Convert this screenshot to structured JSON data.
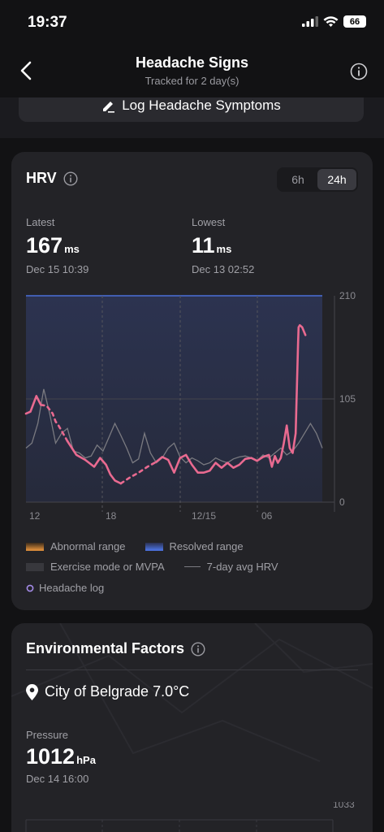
{
  "status_bar": {
    "time": "19:37",
    "battery": "66"
  },
  "header": {
    "title": "Headache Signs",
    "subtitle": "Tracked for 2 day(s)"
  },
  "log_button": {
    "label": "Log Headache Symptoms"
  },
  "hrv": {
    "title": "HRV",
    "ranges": [
      {
        "label": "6h"
      },
      {
        "label": "24h",
        "active": true
      }
    ],
    "latest": {
      "label": "Latest",
      "value": "167",
      "unit": "ms",
      "date": "Dec 15 10:39"
    },
    "lowest": {
      "label": "Lowest",
      "value": "11",
      "unit": "ms",
      "date": "Dec 13 02:52"
    },
    "legend": {
      "abnormal": "Abnormal range",
      "resolved": "Resolved range",
      "exercise": "Exercise mode or MVPA",
      "avg": "7-day avg HRV",
      "headache": "Headache log"
    },
    "colors": {
      "hrv_line": "#e96a90",
      "avg_line": "#7a7a80",
      "resolved": "#4a6fd8",
      "abnormal": "#d68a3a"
    }
  },
  "chart_data": {
    "type": "line",
    "x_ticks": [
      "12",
      "18",
      "12/15",
      "06"
    ],
    "y_ticks": [
      "210",
      "105",
      "0"
    ],
    "ylim": [
      0,
      210
    ],
    "xlim": [
      0,
      100
    ],
    "series": [
      {
        "x": [
          0,
          1.5,
          3.5,
          5,
          7,
          9,
          10,
          11,
          14,
          17,
          20,
          23,
          25,
          27,
          28.5,
          30,
          32,
          35,
          38,
          41,
          44,
          46,
          48,
          50,
          52,
          54,
          56,
          58,
          60,
          62,
          64,
          66,
          68,
          70,
          72,
          74,
          76,
          78,
          80,
          82,
          83,
          84,
          85,
          86,
          87,
          88,
          89,
          90,
          91,
          91.8,
          92,
          92.4,
          93.2,
          94.3
        ],
        "values": [
          90,
          92,
          108,
          99,
          98,
          90,
          82,
          78,
          62,
          48,
          43,
          36,
          45,
          38,
          28,
          22,
          19,
          25,
          30,
          36,
          41,
          46,
          43,
          30,
          45,
          48,
          38,
          30,
          30,
          32,
          40,
          35,
          40,
          35,
          38,
          44,
          45,
          42,
          46,
          48,
          36,
          47,
          40,
          45,
          60,
          78,
          55,
          50,
          70,
          160,
          178,
          180,
          178,
          170
        ]
      },
      {
        "x": [
          0,
          2,
          4,
          6,
          8,
          10,
          12,
          14,
          16,
          18,
          20,
          22,
          24,
          26,
          28,
          30,
          32,
          34,
          36,
          38,
          40,
          42,
          44,
          46,
          48,
          50,
          52,
          54,
          56,
          58,
          60,
          62,
          64,
          66,
          68,
          70,
          72,
          74,
          76,
          78,
          80,
          82,
          84,
          86,
          88,
          90,
          92,
          94,
          96,
          98,
          100
        ],
        "values": [
          55,
          60,
          80,
          115,
          90,
          60,
          70,
          75,
          52,
          50,
          45,
          47,
          58,
          52,
          66,
          80,
          68,
          55,
          40,
          44,
          70,
          50,
          40,
          45,
          55,
          60,
          46,
          40,
          45,
          42,
          38,
          40,
          45,
          42,
          40,
          44,
          46,
          47,
          45,
          42,
          48,
          45,
          50,
          55,
          48,
          52,
          60,
          70,
          80,
          70,
          55
        ]
      }
    ],
    "dashed_segments": [
      [
        5,
        14
      ],
      [
        32,
        44
      ]
    ]
  },
  "env": {
    "title": "Environmental Factors",
    "location": "City of Belgrade 7.0°C",
    "pressure": {
      "label": "Pressure",
      "value": "1012",
      "unit": "hPa",
      "date": "Dec 14 16:00"
    },
    "y_top": "1033"
  }
}
